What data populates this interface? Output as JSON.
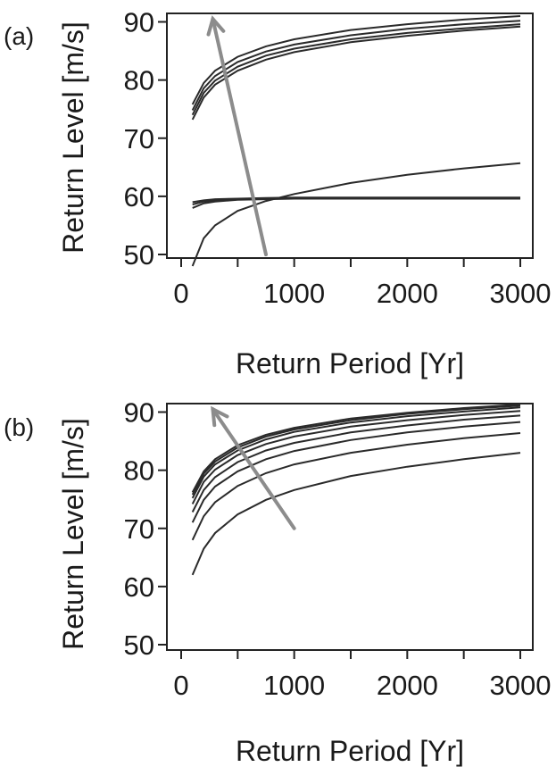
{
  "chart_data": [
    {
      "type": "line",
      "panel_label": "(a)",
      "xlabel": "Return Period [Yr]",
      "ylabel": "Return Level [m/s]",
      "xlim": [
        0,
        3000
      ],
      "ylim": [
        50,
        91
      ],
      "xticks": [
        0,
        1000,
        2000,
        3000
      ],
      "yticks": [
        50,
        60,
        70,
        80,
        90
      ],
      "x": [
        100,
        200,
        300,
        500,
        750,
        1000,
        1500,
        2000,
        2500,
        3000
      ],
      "series": [
        {
          "values": [
            75.8,
            79.5,
            81.6,
            84.0,
            85.8,
            87.0,
            88.6,
            89.6,
            90.4,
            91.0
          ]
        },
        {
          "values": [
            74.8,
            78.6,
            80.7,
            83.1,
            84.9,
            86.1,
            87.7,
            88.8,
            89.6,
            90.2
          ]
        },
        {
          "values": [
            74.0,
            77.8,
            79.9,
            82.3,
            84.2,
            85.4,
            87.0,
            88.1,
            88.9,
            89.6
          ]
        },
        {
          "values": [
            73.2,
            77.0,
            79.2,
            81.6,
            83.5,
            84.8,
            86.5,
            87.6,
            88.5,
            89.2
          ]
        },
        {
          "values": [
            48.0,
            52.8,
            55.0,
            57.5,
            59.2,
            60.4,
            62.3,
            63.7,
            64.8,
            65.7
          ]
        },
        {
          "values": [
            58.0,
            58.8,
            59.1,
            59.4,
            59.5,
            59.6,
            59.6,
            59.6,
            59.6,
            59.6
          ]
        },
        {
          "values": [
            58.6,
            59.1,
            59.3,
            59.5,
            59.6,
            59.7,
            59.7,
            59.7,
            59.7,
            59.7
          ]
        },
        {
          "values": [
            59.0,
            59.3,
            59.5,
            59.6,
            59.7,
            59.8,
            59.8,
            59.8,
            59.8,
            59.8
          ]
        }
      ],
      "arrow": {
        "from": [
          750,
          50
        ],
        "to": [
          280,
          90.5
        ]
      },
      "colors": {
        "lines": "#2a2a2a",
        "arrow": "#8c8c8c"
      }
    },
    {
      "type": "line",
      "panel_label": "(b)",
      "xlabel": "Return Period [Yr]",
      "ylabel": "Return Level [m/s]",
      "xlim": [
        0,
        3000
      ],
      "ylim": [
        50,
        91
      ],
      "xticks": [
        0,
        1000,
        2000,
        3000
      ],
      "yticks": [
        50,
        60,
        70,
        80,
        90
      ],
      "x": [
        100,
        200,
        300,
        500,
        750,
        1000,
        1500,
        2000,
        2500,
        3000
      ],
      "series": [
        {
          "values": [
            76.2,
            79.8,
            81.9,
            84.3,
            86.1,
            87.3,
            88.9,
            89.9,
            90.7,
            91.3
          ]
        },
        {
          "values": [
            75.8,
            79.4,
            81.5,
            83.9,
            85.8,
            87.0,
            88.6,
            89.7,
            90.5,
            91.1
          ]
        },
        {
          "values": [
            75.2,
            78.9,
            81.0,
            83.4,
            85.3,
            86.6,
            88.2,
            89.3,
            90.1,
            90.8
          ]
        },
        {
          "values": [
            74.2,
            78.0,
            80.1,
            82.6,
            84.5,
            85.8,
            87.5,
            88.6,
            89.5,
            90.2
          ]
        },
        {
          "values": [
            72.8,
            76.6,
            78.8,
            81.4,
            83.4,
            84.7,
            86.5,
            87.7,
            88.7,
            89.4
          ]
        },
        {
          "values": [
            71.0,
            74.9,
            77.2,
            79.8,
            81.9,
            83.3,
            85.2,
            86.5,
            87.5,
            88.3
          ]
        },
        {
          "values": [
            68.0,
            72.1,
            74.5,
            77.3,
            79.5,
            81.0,
            83.0,
            84.4,
            85.5,
            86.4
          ]
        },
        {
          "values": [
            62.0,
            66.5,
            69.2,
            72.4,
            74.9,
            76.6,
            79.0,
            80.6,
            81.9,
            83.0
          ]
        }
      ],
      "arrow": {
        "from": [
          1000,
          70
        ],
        "to": [
          280,
          90.5
        ]
      },
      "colors": {
        "lines": "#2a2a2a",
        "arrow": "#8c8c8c"
      }
    }
  ]
}
